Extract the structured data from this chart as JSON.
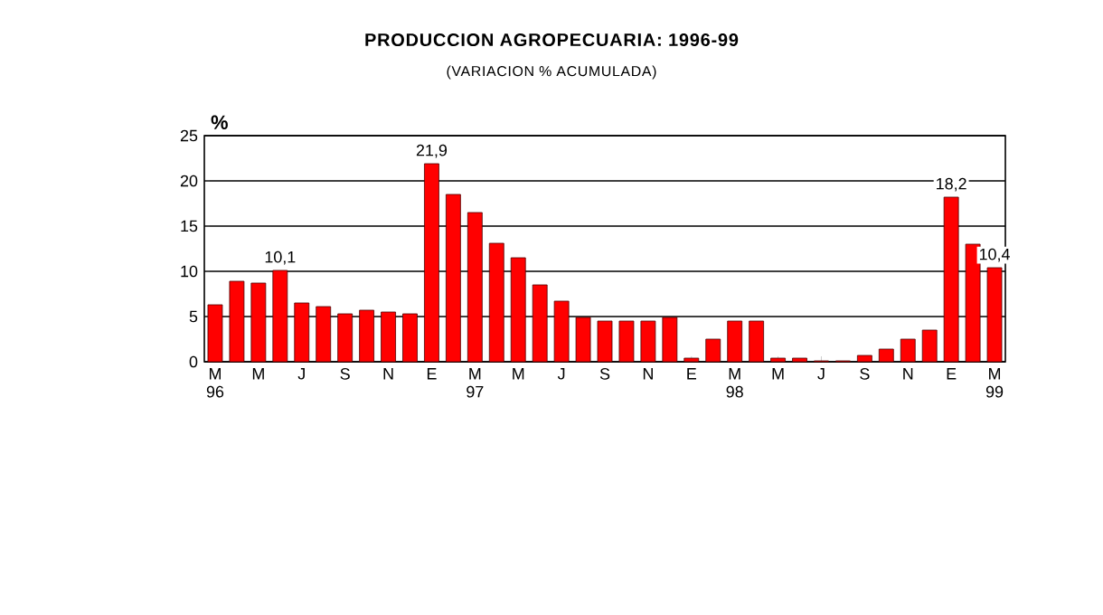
{
  "chart_data": {
    "type": "bar",
    "title": "PRODUCCION AGROPECUARIA: 1996-99",
    "subtitle": "(VARIACION % ACUMULADA)",
    "ylabel": "%",
    "categories": [
      "M 96",
      null,
      "M",
      null,
      "J",
      null,
      "S",
      null,
      "N",
      null,
      "E",
      null,
      "M 97",
      null,
      "M",
      null,
      "J",
      null,
      "S",
      null,
      "N",
      null,
      "E",
      null,
      "M 98",
      null,
      "M",
      null,
      "J",
      null,
      "S",
      null,
      "N",
      null,
      "E",
      null,
      "M 99"
    ],
    "values": [
      6.3,
      8.9,
      8.7,
      10.1,
      6.5,
      6.1,
      5.3,
      5.7,
      5.5,
      5.3,
      21.9,
      18.5,
      16.5,
      13.1,
      11.5,
      8.5,
      6.7,
      4.9,
      4.5,
      4.5,
      4.5,
      4.9,
      0.4,
      2.5,
      4.5,
      4.5,
      0.4,
      0.4,
      0.1,
      0.1,
      0.7,
      1.4,
      2.5,
      3.5,
      18.2,
      13.0,
      10.4
    ],
    "value_labels": [
      null,
      null,
      null,
      "10,1",
      null,
      null,
      null,
      null,
      null,
      null,
      "21,9",
      null,
      null,
      null,
      null,
      null,
      null,
      null,
      null,
      null,
      null,
      null,
      null,
      null,
      null,
      null,
      null,
      null,
      null,
      null,
      null,
      null,
      null,
      null,
      "18,2",
      null,
      "10,4"
    ],
    "color": "#ff0000",
    "ylim": [
      0,
      25
    ],
    "yticks": [
      0,
      5,
      10,
      15,
      20,
      25
    ],
    "grid": "y"
  }
}
